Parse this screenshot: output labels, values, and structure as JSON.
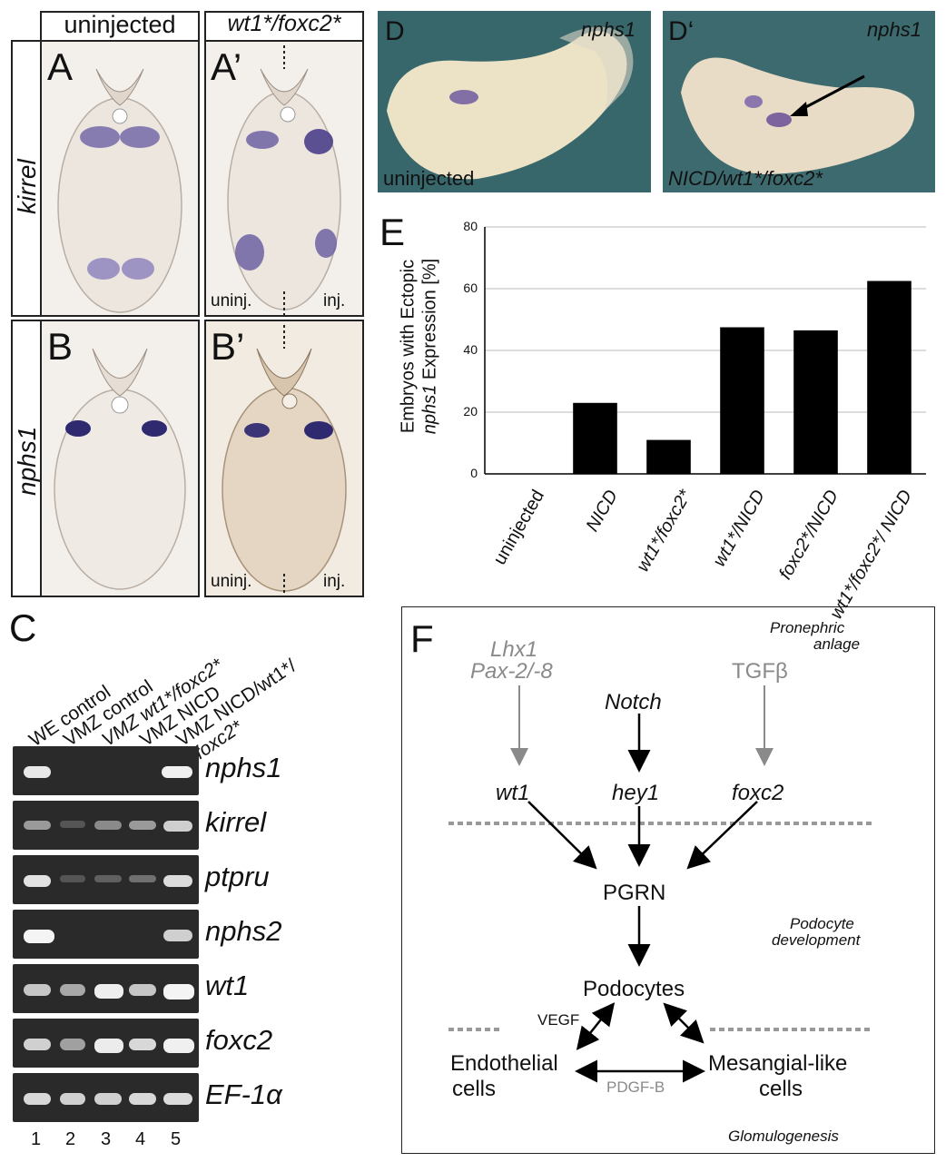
{
  "panel_letters": {
    "A": "A",
    "A2": "A’",
    "B": "B",
    "B2": "B’",
    "C": "C",
    "D": "D",
    "D2": "D‘",
    "E": "E",
    "F": "F"
  },
  "sections": {
    "col_uninjected": "uninjected",
    "col_injected": "wt1*/foxc2*",
    "row_kirrel": "kirrel",
    "row_nphs1": "nphs1",
    "side_uninj": "uninj.",
    "side_inj": "inj."
  },
  "photos": {
    "D_gene": "nphs1",
    "D_label": "uninjected",
    "D2_gene": "nphs1",
    "D2_label": "NICD/wt1*/foxc2*"
  },
  "gel": {
    "headers": [
      "WE control",
      "VMZ control",
      "VMZ wt1*/foxc2*",
      "VMZ NICD",
      "VMZ NICD/wt1*/",
      "foxc2*"
    ],
    "genes": [
      "nphs1",
      "kirrel",
      "ptpru",
      "nphs2",
      "wt1",
      "foxc2",
      "EF-1α"
    ],
    "lanes": [
      "1",
      "2",
      "3",
      "4",
      "5"
    ]
  },
  "chart_data": {
    "type": "bar",
    "categories": [
      "uninjected",
      "NICD",
      "wt1*/foxc2*",
      "wt1*/NICD",
      "foxc2*/NICD",
      "wt1*/foxc2*/ NICD"
    ],
    "values": [
      0,
      23,
      11,
      47.5,
      46.5,
      62.5
    ],
    "ylabel_line1": "Embryos with Ectopic",
    "ylabel_line2_gene": "nphs1",
    "ylabel_line2_rest": " Expression [%]",
    "ylim": [
      0,
      80
    ],
    "yticks": [
      "0",
      "20",
      "40",
      "60",
      "80"
    ],
    "bar_color": "#000000",
    "grid": true
  },
  "diagram": {
    "pronephric": "Pronephric",
    "anlage": "anlage",
    "lhx1": "Lhx1",
    "pax": "Pax-2/-8",
    "notch": "Notch",
    "tgfb": "TGFβ",
    "wt1": "wt1",
    "hey1": "hey1",
    "foxc2": "foxc2",
    "pgrn": "PGRN",
    "podocyte": "Podocyte",
    "development": "development",
    "podocytes": "Podocytes",
    "vegf": "VEGF",
    "endothelial": "Endothelial",
    "cells1": "cells",
    "mesangial": "Mesangial-like",
    "cells2": "cells",
    "pdgfb": "PDGF-B",
    "glomulogenesis": "Glomulogenesis"
  }
}
